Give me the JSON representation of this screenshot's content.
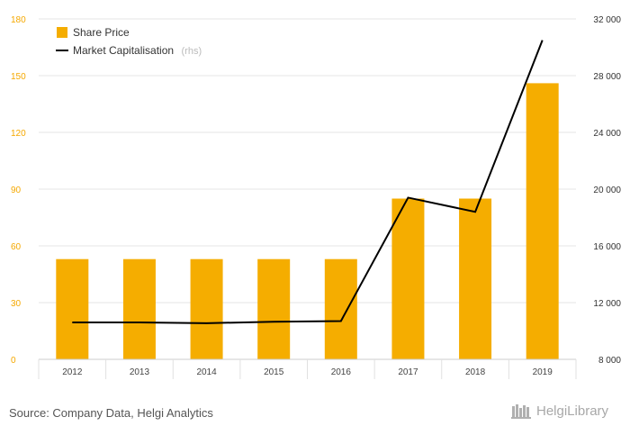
{
  "chart_data": {
    "type": "bar+line",
    "categories": [
      "2012",
      "2013",
      "2014",
      "2015",
      "2016",
      "2017",
      "2018",
      "2019"
    ],
    "series": [
      {
        "name": "Share Price",
        "type": "bar",
        "axis": "left",
        "color": "#f5ad00",
        "values": [
          53,
          53,
          53,
          53,
          53,
          85,
          85,
          146
        ]
      },
      {
        "name": "Market Capitalisation",
        "name_suffix": "(rhs)",
        "type": "line",
        "axis": "right",
        "color": "#000000",
        "values": [
          10600,
          10600,
          10550,
          10650,
          10700,
          19400,
          18400,
          30500
        ]
      }
    ],
    "y_left": {
      "min": 0,
      "max": 180,
      "ticks": [
        "0",
        "30",
        "60",
        "90",
        "120",
        "150",
        "180"
      ]
    },
    "y_right": {
      "min": 8000,
      "max": 32000,
      "ticks": [
        "8 000",
        "12 000",
        "16 000",
        "20 000",
        "24 000",
        "28 000",
        "32 000"
      ]
    },
    "grid": true,
    "legend_position": "top-left"
  },
  "footer": {
    "source": "Source: Company Data, Helgi Analytics",
    "logo_text": "HelgiLibrary",
    "logo_icon": "helgi-library-icon"
  }
}
